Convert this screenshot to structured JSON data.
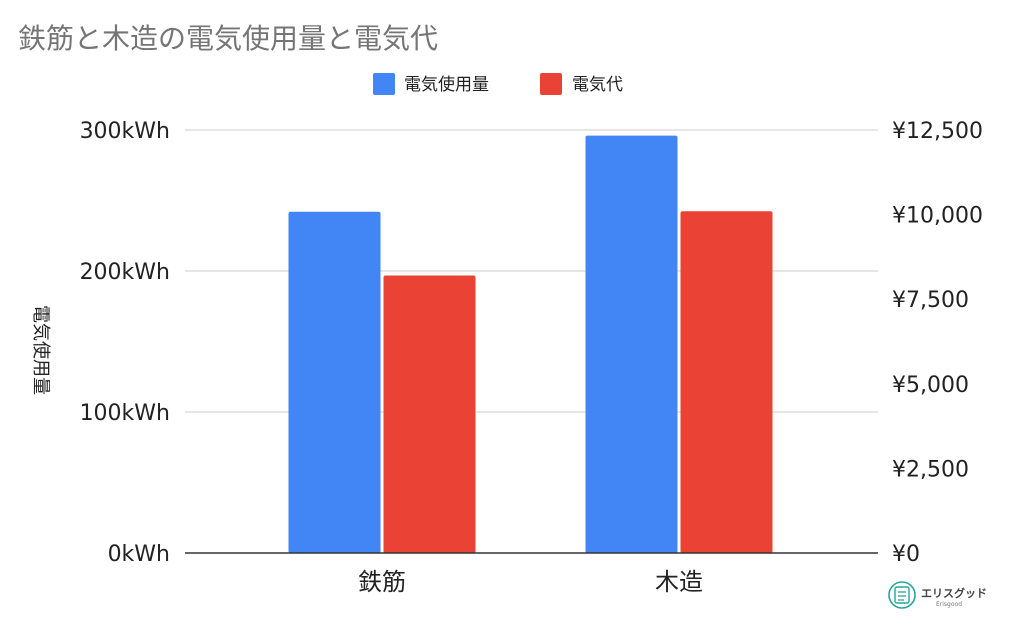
{
  "chart_data": {
    "type": "bar",
    "title": "鉄筋と木造の電気使用量と電気代",
    "categories": [
      "鉄筋",
      "木造"
    ],
    "series": [
      {
        "name": "電気使用量",
        "axis": "left",
        "color": "#4285F4",
        "values": [
          242,
          296
        ]
      },
      {
        "name": "電気代",
        "axis": "right",
        "color": "#EA4335",
        "values": [
          8200,
          10100
        ]
      }
    ],
    "ylabel": "電気使用量",
    "y_left": {
      "range": [
        0,
        300
      ],
      "ticks": [
        0,
        100,
        200,
        300
      ],
      "tick_labels": [
        "0kWh",
        "100kWh",
        "200kWh",
        "300kWh"
      ]
    },
    "y_right": {
      "range": [
        0,
        12500
      ],
      "ticks": [
        0,
        2500,
        5000,
        7500,
        10000,
        12500
      ],
      "tick_labels": [
        "¥0",
        "¥2,500",
        "¥5,000",
        "¥7,500",
        "¥10,000",
        "¥12,500"
      ]
    },
    "legend_position": "top",
    "grid": true
  },
  "watermark": {
    "name": "エリスグッド",
    "sub": "Erisgood",
    "icon": "document-list-icon",
    "color": "#26A69A"
  }
}
